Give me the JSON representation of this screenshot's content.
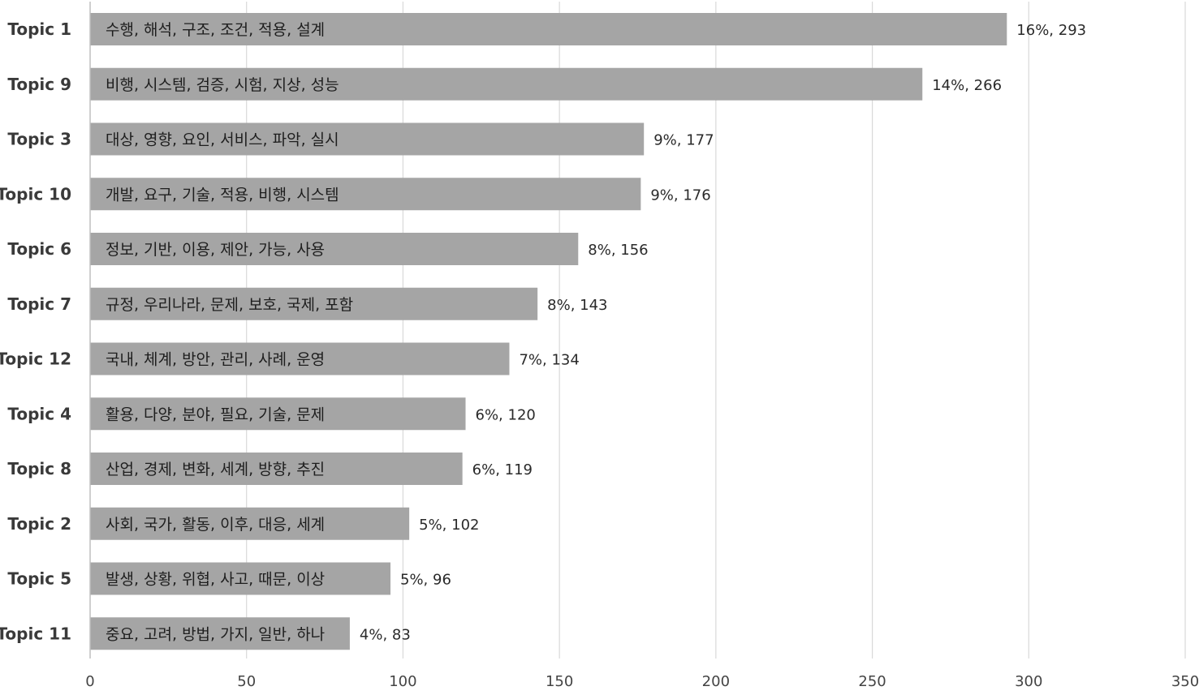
{
  "chart_data": {
    "type": "bar",
    "orientation": "horizontal",
    "categories": [
      "Topic 1",
      "Topic 9",
      "Topic 3",
      "Topic 10",
      "Topic 6",
      "Topic 7",
      "Topic 12",
      "Topic 4",
      "Topic 8",
      "Topic 2",
      "Topic 5",
      "Topic 11"
    ],
    "values": [
      293,
      266,
      177,
      176,
      156,
      143,
      134,
      120,
      119,
      102,
      96,
      83
    ],
    "percent_labels": [
      "16%",
      "14%",
      "9%",
      "9%",
      "8%",
      "8%",
      "7%",
      "6%",
      "6%",
      "5%",
      "5%",
      "4%"
    ],
    "data_labels": [
      "16%, 293",
      "14%, 266",
      "9%, 177",
      "9%, 176",
      "8%, 156",
      "8%, 143",
      "7%, 134",
      "6%, 120",
      "6%, 119",
      "5%, 102",
      "5%, 96",
      "4%, 83"
    ],
    "bar_keywords": [
      "수행, 해석, 구조, 조건, 적용, 설계",
      "비행, 시스템, 검증, 시험, 지상, 성능",
      "대상, 영향, 요인, 서비스, 파악, 실시",
      "개발, 요구, 기술, 적용, 비행, 시스템",
      "정보, 기반, 이용, 제안, 가능, 사용",
      "규정, 우리나라, 문제, 보호, 국제, 포함",
      "국내, 체계, 방안, 관리, 사례, 운영",
      "활용, 다양, 분야, 필요, 기술, 문제",
      "산업, 경제, 변화, 세계, 방향, 추진",
      "사회, 국가, 활동, 이후, 대응, 세계",
      "발생, 상황, 위협, 사고, 때문, 이상",
      "중요, 고려, 방법, 가지, 일반, 하나"
    ],
    "xlim": [
      0,
      350
    ],
    "x_ticks": [
      "0",
      "50",
      "100",
      "150",
      "200",
      "250",
      "300",
      "350"
    ],
    "title": "",
    "xlabel": "",
    "ylabel": "",
    "grid": "vertical",
    "legend": "none",
    "colors": {
      "bar": "#a5a5a5",
      "grid": "#d9d9d9",
      "axis": "#bfbfbf"
    }
  }
}
